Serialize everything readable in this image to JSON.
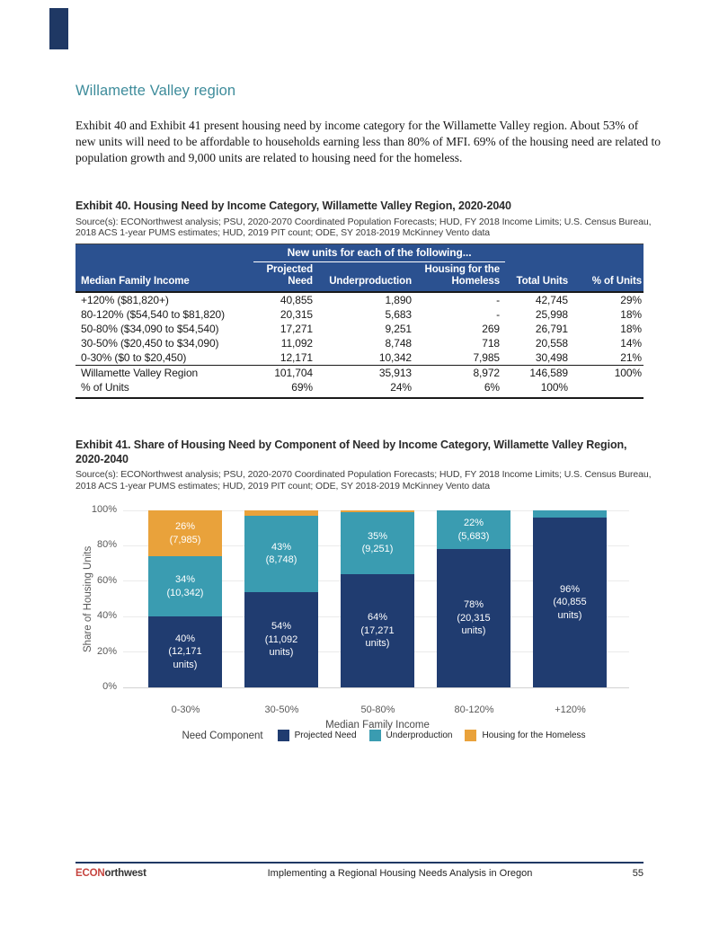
{
  "page": {
    "heading": "Willamette Valley region",
    "paragraph": "Exhibit 40 and Exhibit 41 present housing need by income category for the Willamette Valley region. About 53% of new units will need to be affordable to households earning less than 80% of MFI. 69% of the housing need are related to population growth and 9,000 units are related to housing need for the homeless."
  },
  "exhibit40": {
    "caption": "Exhibit 40. Housing Need by Income Category, Willamette Valley Region, 2020-2040",
    "source": "Source(s): ECONorthwest analysis; PSU, 2020-2070 Coordinated Population Forecasts; HUD, FY 2018 Income Limits; U.S. Census Bureau, 2018 ACS 1-year PUMS estimates; HUD, 2019 PIT count; ODE, SY 2018-2019 McKinney Vento data",
    "table": {
      "group_header": "New units for each of the following...",
      "columns": [
        "Median Family Income",
        "Projected Need",
        "Underproduction",
        "Housing for the Homeless",
        "Total Units",
        "% of Units"
      ],
      "rows": [
        [
          "+120% ($81,820+)",
          "40,855",
          "1,890",
          "-",
          "42,745",
          "29%"
        ],
        [
          "80-120% ($54,540 to $81,820)",
          "20,315",
          "5,683",
          "-",
          "25,998",
          "18%"
        ],
        [
          "50-80% ($34,090 to $54,540)",
          "17,271",
          "9,251",
          "269",
          "26,791",
          "18%"
        ],
        [
          "30-50% ($20,450 to $34,090)",
          "11,092",
          "8,748",
          "718",
          "20,558",
          "14%"
        ],
        [
          "0-30% ($0 to $20,450)",
          "12,171",
          "10,342",
          "7,985",
          "30,498",
          "21%"
        ]
      ],
      "total_row": [
        "Willamette Valley Region",
        "101,704",
        "35,913",
        "8,972",
        "146,589",
        "100%"
      ],
      "percent_row": [
        "% of Units",
        "69%",
        "24%",
        "6%",
        "100%",
        ""
      ]
    }
  },
  "exhibit41": {
    "caption": "Exhibit 41. Share of Housing Need by Component of Need by Income Category, Willamette Valley Region, 2020-2040",
    "source": "Source(s): ECONorthwest analysis; PSU, 2020-2070 Coordinated Population Forecasts; HUD, FY 2018 Income Limits; U.S. Census Bureau, 2018 ACS 1-year PUMS estimates; HUD, 2019 PIT count; ODE, SY 2018-2019 McKinney Vento data"
  },
  "chart_data": {
    "type": "bar",
    "stacked": true,
    "ylabel": "Share of Housing Units",
    "xlabel": "Median Family Income",
    "ylim": [
      0,
      100
    ],
    "yticks": [
      "0%",
      "20%",
      "40%",
      "60%",
      "80%",
      "100%"
    ],
    "grid": "horizontal",
    "legend_position": "bottom",
    "legend_title": "Need Component",
    "categories": [
      "0-30%",
      "30-50%",
      "50-80%",
      "80-120%",
      "+120%"
    ],
    "series": [
      {
        "name": "Projected Need",
        "color": "#203C70",
        "values": [
          40,
          54,
          64,
          78,
          96
        ],
        "unit_counts": [
          12171,
          11092,
          17271,
          20315,
          40855
        ],
        "labels": [
          "40%\n(12,171\nunits)",
          "54%\n(11,092\nunits)",
          "64%\n(17,271\nunits)",
          "78%\n(20,315\nunits)",
          "96%\n(40,855\nunits)"
        ]
      },
      {
        "name": "Underproduction",
        "color": "#3A9CB1",
        "values": [
          34,
          43,
          35,
          22,
          4
        ],
        "unit_counts": [
          10342,
          8748,
          9251,
          5683,
          1890
        ],
        "labels": [
          "34%\n(10,342)",
          "43%\n(8,748)",
          "35%\n(9,251)",
          "22%\n(5,683)",
          ""
        ]
      },
      {
        "name": "Housing for the Homeless",
        "color": "#E9A23B",
        "values": [
          26,
          3,
          1,
          0,
          0
        ],
        "unit_counts": [
          7985,
          718,
          269,
          0,
          0
        ],
        "labels": [
          "26%\n(7,985)",
          "",
          "",
          "",
          ""
        ]
      }
    ]
  },
  "footer": {
    "logo_red": "ECON",
    "logo_dark": "orthwest",
    "center": "Implementing a Regional Housing Needs Analysis in Oregon",
    "page_number": "55"
  },
  "colors": {
    "heading_teal": "#3E8C9B",
    "table_header_blue": "#2B5190",
    "bar_navy": "#203C70",
    "bar_teal": "#3A9CB1",
    "bar_orange": "#E9A23B",
    "footer_rule_navy": "#1F3864",
    "logo_red": "#C64540"
  }
}
